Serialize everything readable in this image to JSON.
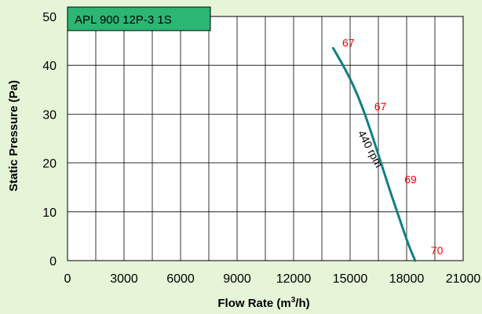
{
  "chart_data": {
    "type": "line",
    "title": "APL 900 12P-3 1S",
    "xlabel_main": "Flow Rate (m",
    "xlabel_sup": "3",
    "xlabel_end": "/h)",
    "ylabel": "Static Pressure (Pa)",
    "xlim": [
      0,
      21000
    ],
    "ylim": [
      0,
      50
    ],
    "x_ticks": [
      "0",
      "3000",
      "6000",
      "9000",
      "12000",
      "15000",
      "18000",
      "21000"
    ],
    "y_ticks": [
      "0",
      "10",
      "20",
      "30",
      "40",
      "50"
    ],
    "grid": true,
    "series": [
      {
        "name": "440 rpm",
        "x": [
          14100,
          14600,
          15100,
          15600,
          16100,
          16600,
          17100,
          17600,
          18100,
          18450
        ],
        "y": [
          43.5,
          40.2,
          36.5,
          32.0,
          26.5,
          20.5,
          14.5,
          8.8,
          3.2,
          0
        ]
      }
    ],
    "annotations": [
      {
        "text": "67",
        "x": 14500,
        "y": 43.5
      },
      {
        "text": "67",
        "x": 16200,
        "y": 30.5
      },
      {
        "text": "69",
        "x": 17800,
        "y": 15.5
      },
      {
        "text": "70",
        "x": 19200,
        "y": 1.0
      }
    ],
    "colors": {
      "background": "#e6f5d8",
      "plot_background": "#ffffff",
      "grid": "#000000",
      "curve": "#108080",
      "annotation": "#ff0000",
      "title_box": "#2bb673"
    }
  }
}
